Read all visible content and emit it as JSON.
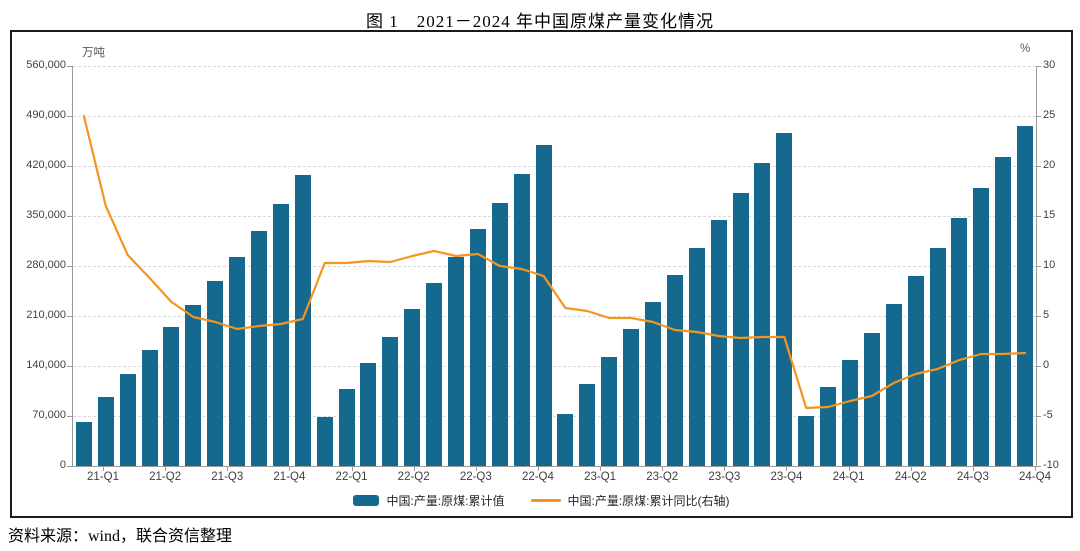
{
  "title": "图 1　2021－2024 年中国原煤产量变化情况",
  "source": "资料来源：wind，联合资信整理",
  "legend": {
    "bar_label": "中国:产量:原煤:累计值",
    "line_label": "中国:产量:原煤:累计同比(右轴)"
  },
  "colors": {
    "bar": "#15698F",
    "line": "#F5941F",
    "grid": "#D9D9D9",
    "axis": "#9B9B9B",
    "tick_text": "#404040",
    "border": "#1A1A1A"
  },
  "chart_data": {
    "type": "bar",
    "subtype": "bar-line combo, monthly cumulative values (Feb-Dec each year)",
    "grid": "dashed horizontal",
    "legend_position": "bottom center",
    "left_axis": {
      "unit": "万吨",
      "min": 0,
      "max": 560000,
      "step": 70000,
      "tick_labels": [
        "560,000",
        "490,000",
        "420,000",
        "350,000",
        "280,000",
        "210,000",
        "140,000",
        "70,000",
        "0"
      ]
    },
    "right_axis": {
      "unit": "%",
      "min": -10,
      "max": 30,
      "step": 5,
      "tick_labels": [
        "30",
        "25",
        "20",
        "15",
        "10",
        "5",
        "0",
        "-5",
        "-10"
      ]
    },
    "x_tick_labels": [
      "21-Q1",
      "21-Q2",
      "21-Q3",
      "21-Q4",
      "22-Q1",
      "22-Q2",
      "22-Q3",
      "22-Q4",
      "23-Q1",
      "23-Q2",
      "23-Q3",
      "23-Q4",
      "24-Q1",
      "24-Q2",
      "24-Q3",
      "24-Q4"
    ],
    "categories": [
      "2021-02",
      "2021-03",
      "2021-04",
      "2021-05",
      "2021-06",
      "2021-07",
      "2021-08",
      "2021-09",
      "2021-10",
      "2021-11",
      "2021-12",
      "2022-02",
      "2022-03",
      "2022-04",
      "2022-05",
      "2022-06",
      "2022-07",
      "2022-08",
      "2022-09",
      "2022-10",
      "2022-11",
      "2022-12",
      "2023-02",
      "2023-03",
      "2023-04",
      "2023-05",
      "2023-06",
      "2023-07",
      "2023-08",
      "2023-09",
      "2023-10",
      "2023-11",
      "2023-12",
      "2024-02",
      "2024-03",
      "2024-04",
      "2024-05",
      "2024-06",
      "2024-07",
      "2024-08",
      "2024-09",
      "2024-10",
      "2024-11",
      "2024-12"
    ],
    "series": [
      {
        "name": "中国:产量:原煤:累计值",
        "type": "bar",
        "axis": "left",
        "color": "#15698F",
        "values": [
          61800,
          97100,
          129300,
          162400,
          195000,
          225600,
          259700,
          293000,
          329700,
          366700,
          407100,
          68700,
          108400,
          144800,
          181200,
          219300,
          256200,
          293300,
          331700,
          368500,
          409300,
          449600,
          73400,
          115300,
          153300,
          191200,
          230000,
          267400,
          305300,
          344000,
          382900,
          424300,
          465800,
          70500,
          110600,
          147900,
          185800,
          226600,
          265400,
          304800,
          347600,
          389200,
          432200,
          475900
        ]
      },
      {
        "name": "中国:产量:原煤:累计同比(右轴)",
        "type": "line",
        "axis": "right",
        "color": "#F5941F",
        "values": [
          25.0,
          16.0,
          11.1,
          8.8,
          6.4,
          4.9,
          4.4,
          3.7,
          4.0,
          4.2,
          4.7,
          10.3,
          10.3,
          10.5,
          10.4,
          11.0,
          11.5,
          11.0,
          11.2,
          10.0,
          9.7,
          9.0,
          5.8,
          5.5,
          4.8,
          4.8,
          4.4,
          3.6,
          3.4,
          3.0,
          2.8,
          2.9,
          2.9,
          -4.2,
          -4.1,
          -3.5,
          -3.0,
          -1.7,
          -0.8,
          -0.3,
          0.6,
          1.2,
          1.2,
          1.3
        ]
      }
    ]
  }
}
